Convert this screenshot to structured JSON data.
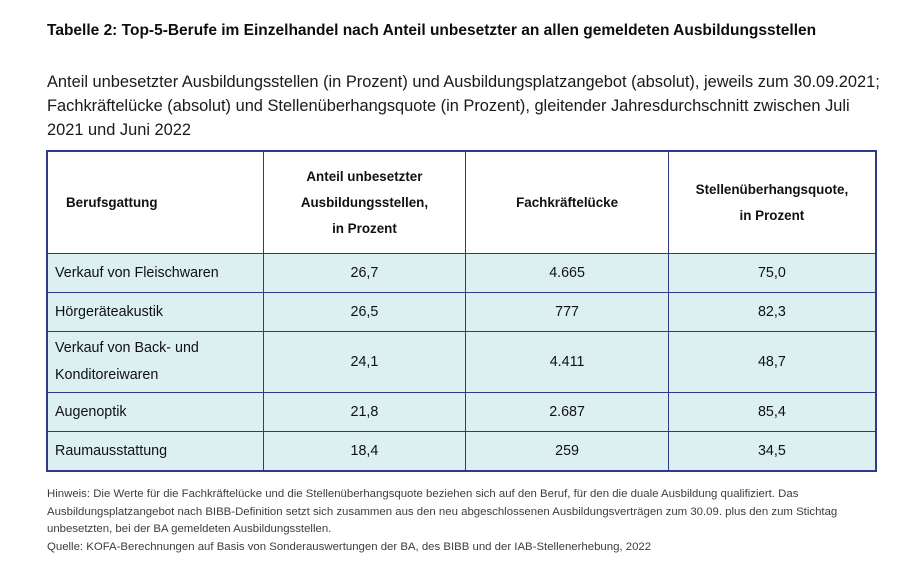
{
  "title": "Tabelle 2: Top-5-Berufe im Einzelhandel nach Anteil unbesetzter an allen gemeldeten Ausbildungsstellen",
  "subtitle": "Anteil unbesetzter Ausbildungsstellen (in Prozent) und Ausbildungsplatzangebot (absolut), jeweils zum 30.09.2021; Fachkräftelücke (absolut) und Stellenüberhangsquote (in Prozent), gleitender Jahresdurchschnitt zwischen Juli 2021 und Juni 2022",
  "table": {
    "headers": {
      "col1": "Berufsgattung",
      "col2_line1": "Anteil unbesetzter",
      "col2_line2": "Ausbildungsstellen,",
      "col2_line3": "in Prozent",
      "col3": "Fachkräftelücke",
      "col4_line1": "Stellenüberhangsquote,",
      "col4_line2": "in Prozent"
    },
    "rows": [
      {
        "name": "Verkauf von Fleischwaren",
        "anteil": "26,7",
        "luecke": "4.665",
        "quote": "75,0"
      },
      {
        "name": "Hörgeräteakustik",
        "anteil": "26,5",
        "luecke": "777",
        "quote": "82,3"
      },
      {
        "name_line1": "Verkauf von Back- und",
        "name_line2": "Konditoreiwaren",
        "anteil": "24,1",
        "luecke": "4.411",
        "quote": "48,7"
      },
      {
        "name": "Augenoptik",
        "anteil": "21,8",
        "luecke": "2.687",
        "quote": "85,4"
      },
      {
        "name": "Raumausstattung",
        "anteil": "18,4",
        "luecke": "259",
        "quote": "34,5"
      }
    ]
  },
  "notes": {
    "hinweis": "Hinweis: Die Werte für die Fachkräftelücke und die Stellenüberhangsquote beziehen sich auf den Beruf, für den die duale Ausbildung qualifiziert. Das Ausbildungsplatzangebot nach BIBB-Definition setzt sich zusammen aus den neu abgeschlossenen Ausbildungsverträgen zum 30.09. plus den zum Stichtag unbesetzten, bei der BA gemeldeten Ausbildungsstellen.",
    "quelle": "Quelle: KOFA-Berechnungen auf Basis von Sonderauswertungen der BA, des BIBB und der IAB-Stellenerhebung, 2022"
  }
}
